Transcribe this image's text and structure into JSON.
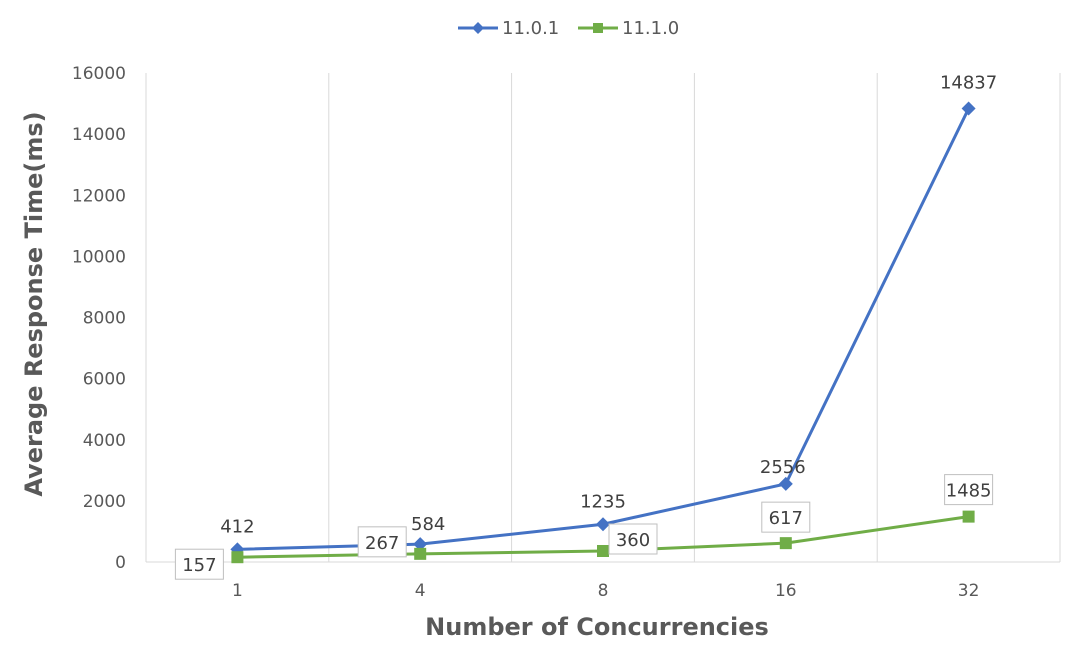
{
  "chart_data": {
    "type": "line",
    "title": "",
    "xlabel": "Number of Concurrencies",
    "ylabel": "Average Response Time(ms)",
    "categories": [
      "1",
      "4",
      "8",
      "16",
      "32"
    ],
    "ylim": [
      0,
      16000
    ],
    "yticks": [
      0,
      2000,
      4000,
      6000,
      8000,
      10000,
      12000,
      14000,
      16000
    ],
    "grid": "vertical",
    "legend_position": "top",
    "series": [
      {
        "name": "11.0.1",
        "values": [
          412,
          584,
          1235,
          2556,
          14837
        ],
        "color": "#4472c4",
        "marker": "diamond",
        "labels_boxed": false
      },
      {
        "name": "11.1.0",
        "values": [
          157,
          267,
          360,
          617,
          1485
        ],
        "color": "#70ad47",
        "marker": "square",
        "labels_boxed": true
      }
    ]
  }
}
